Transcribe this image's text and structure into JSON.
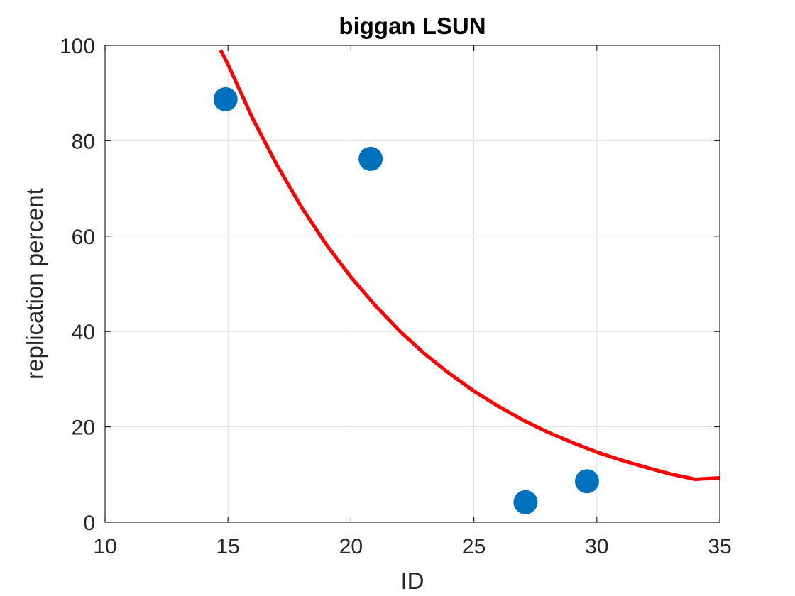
{
  "chart_data": {
    "type": "scatter",
    "title": "biggan LSUN",
    "xlabel": "ID",
    "ylabel": "replication percent",
    "xlim": [
      10,
      35
    ],
    "ylim": [
      0,
      100
    ],
    "xticks": [
      10,
      15,
      20,
      25,
      30,
      35
    ],
    "yticks": [
      0,
      20,
      40,
      60,
      80,
      100
    ],
    "grid": true,
    "series": [
      {
        "kind": "scatter",
        "color": "#0072BD",
        "x": [
          14.9,
          20.8,
          27.1,
          29.6
        ],
        "y": [
          88.7,
          76.2,
          4.2,
          8.6
        ]
      },
      {
        "kind": "line",
        "color": "#FF0000",
        "x": [
          14.7,
          15,
          16,
          17,
          18,
          19,
          20,
          21,
          22,
          23,
          24,
          25,
          26,
          27,
          28,
          29,
          30,
          31,
          32,
          33,
          34,
          35
        ],
        "y": [
          99.0,
          96.0,
          84.7,
          74.8,
          66.0,
          58.2,
          51.4,
          45.4,
          40.0,
          35.3,
          31.2,
          27.5,
          24.3,
          21.4,
          18.9,
          16.7,
          14.7,
          13.0,
          11.5,
          10.1,
          9.0,
          9.3
        ]
      }
    ]
  }
}
